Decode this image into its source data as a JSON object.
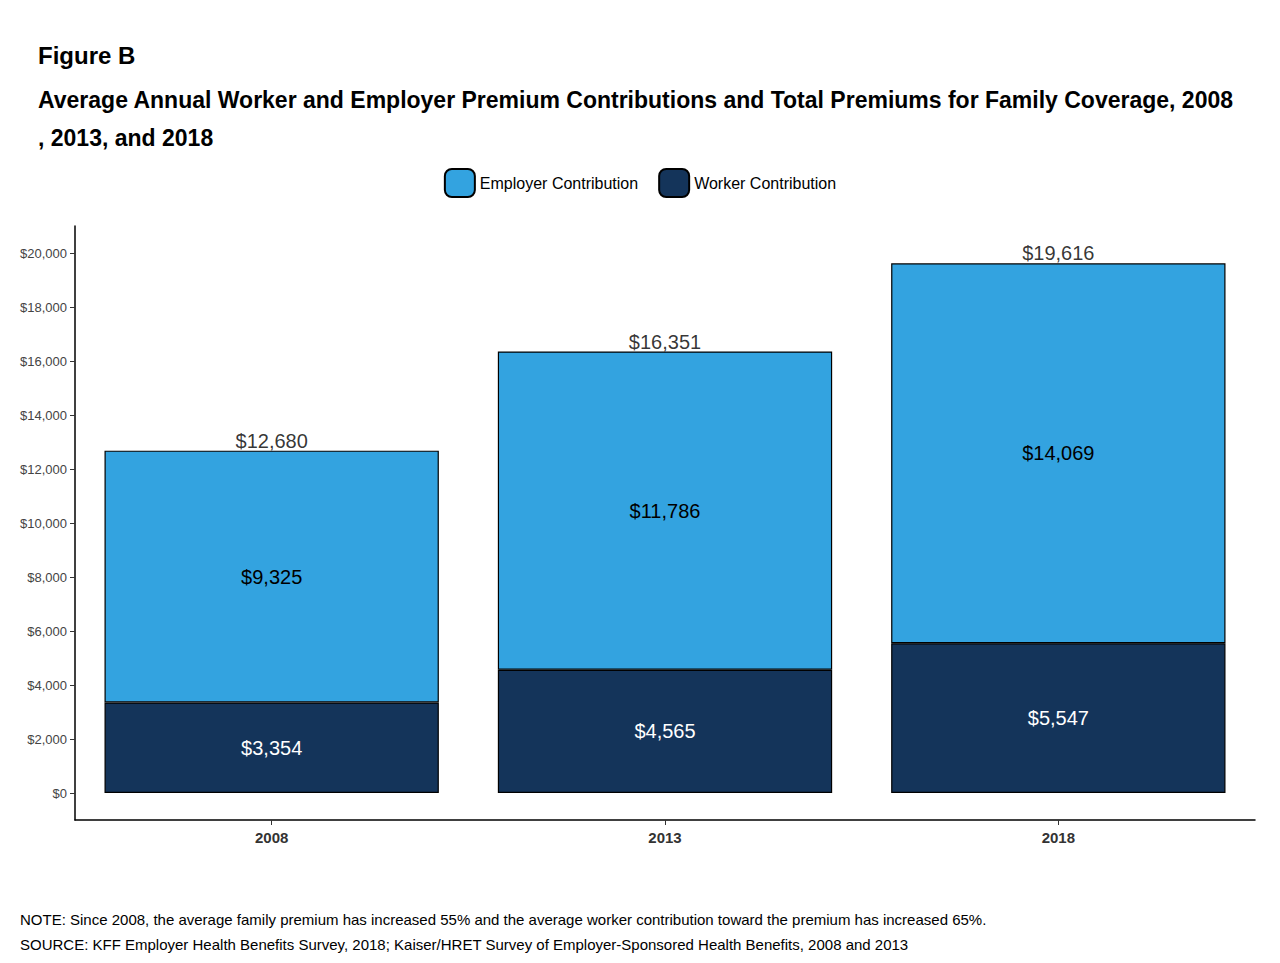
{
  "chart_data": {
    "type": "bar",
    "title": "Figure B",
    "subtitle": "Average Annual Worker and Employer Premium Contributions and Total Premiums for Family Coverage, 2008, 2013, and 2018",
    "categories": [
      "2008",
      "2013",
      "2018"
    ],
    "series": [
      {
        "name": "Employer Contribution",
        "color": "#33a3e0",
        "values": [
          9325,
          11786,
          14069
        ],
        "value_labels": [
          "$9,325",
          "$11,786",
          "$14,069"
        ]
      },
      {
        "name": "Worker Contribution",
        "color": "#14345a",
        "values": [
          3354,
          4565,
          5547
        ],
        "value_labels": [
          "$3,354",
          "$4,565",
          "$5,547"
        ]
      }
    ],
    "totals": [
      12680,
      16351,
      19616
    ],
    "total_labels": [
      "$12,680",
      "$16,351",
      "$19,616"
    ],
    "stacked": true,
    "data_labels": true,
    "legend": "top",
    "grid": false,
    "ylim": [
      -1000,
      21000
    ],
    "yticks": [
      {
        "value": 0,
        "label": "$0"
      },
      {
        "value": 2000,
        "label": "$2,000"
      },
      {
        "value": 4000,
        "label": "$4,000"
      },
      {
        "value": 6000,
        "label": "$6,000"
      },
      {
        "value": 8000,
        "label": "$8,000"
      },
      {
        "value": 10000,
        "label": "$10,000"
      },
      {
        "value": 12000,
        "label": "$12,000"
      },
      {
        "value": 14000,
        "label": "$14,000"
      },
      {
        "value": 16000,
        "label": "$16,000"
      },
      {
        "value": 18000,
        "label": "$18,000"
      },
      {
        "value": 20000,
        "label": "$20,000"
      }
    ],
    "annotations": [
      "NOTE: Since 2008, the average family premium has increased 55% and the average worker contribution toward the premium has increased 65%.",
      "SOURCE: KFF Employer Health Benefits Survey, 2018; Kaiser/HRET Survey of Employer-Sponsored Health Benefits, 2008 and 2013"
    ]
  }
}
